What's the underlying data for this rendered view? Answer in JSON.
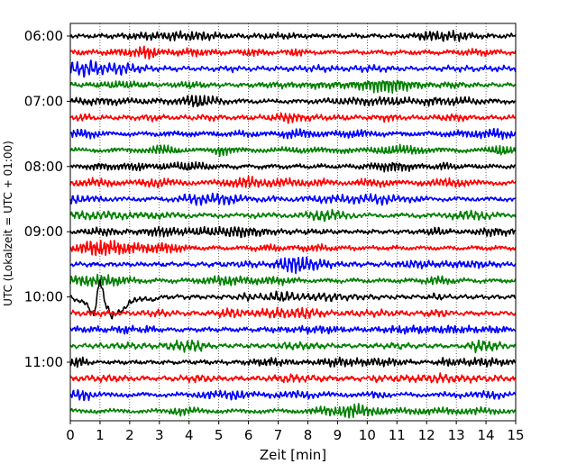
{
  "chart_data": {
    "type": "line",
    "chart_kind": "helicorder",
    "title": "",
    "xlabel": "Zeit  [min]",
    "ylabel": "UTC (Lokalzeit = UTC + 01:00)",
    "xlim": [
      0,
      15
    ],
    "x_ticks": [
      "0",
      "1",
      "2",
      "3",
      "4",
      "5",
      "6",
      "7",
      "8",
      "9",
      "10",
      "11",
      "12",
      "13",
      "14",
      "15"
    ],
    "y_tick_labels": [
      "06:00",
      "07:00",
      "08:00",
      "09:00",
      "10:00",
      "11:00"
    ],
    "lines_per_hour": 4,
    "line_count": 24,
    "grid": "vertical-dotted",
    "color_cycle": [
      "#000000",
      "#ff0000",
      "#0000ff",
      "#008000"
    ],
    "event": {
      "trace_label": "10:00",
      "minute_points": [
        0,
        0.3,
        0.55,
        0.8,
        1.0,
        1.15,
        1.4,
        1.7,
        2.0,
        2.3,
        2.7,
        3.1
      ],
      "relative_amplitude": [
        0,
        0.06,
        0.12,
        0.28,
        -0.28,
        0.05,
        0.32,
        0.22,
        0.1,
        0.02,
        0.05,
        0.0
      ]
    }
  }
}
